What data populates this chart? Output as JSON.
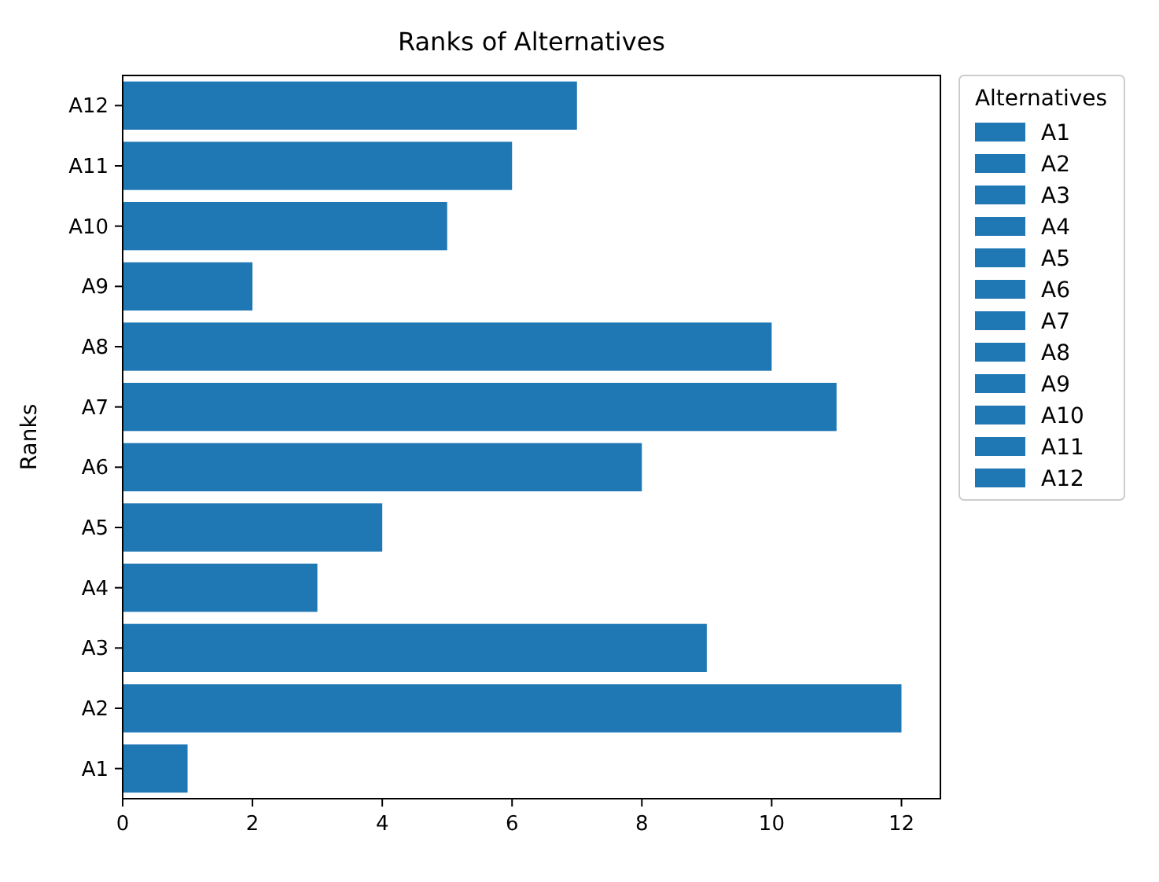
{
  "chart_data": {
    "type": "bar",
    "orientation": "horizontal",
    "title": "Ranks of Alternatives",
    "ylabel": "Ranks",
    "legend_title": "Alternatives",
    "legend": "right",
    "categories": [
      "A12",
      "A11",
      "A10",
      "A9",
      "A8",
      "A7",
      "A6",
      "A5",
      "A4",
      "A3",
      "A2",
      "A1"
    ],
    "xlim": [
      0,
      12.6
    ],
    "xticks": [
      0,
      2,
      4,
      6,
      8,
      10,
      12
    ],
    "series": [
      {
        "name": "A1",
        "color": "#1f77b4",
        "values": [
          null,
          null,
          null,
          null,
          null,
          null,
          null,
          null,
          null,
          null,
          null,
          1
        ]
      },
      {
        "name": "A2",
        "color": "#1f77b4",
        "values": [
          null,
          null,
          null,
          null,
          null,
          null,
          null,
          null,
          null,
          null,
          12,
          null
        ]
      },
      {
        "name": "A3",
        "color": "#1f77b4",
        "values": [
          null,
          null,
          null,
          null,
          null,
          null,
          null,
          null,
          null,
          9,
          null,
          null
        ]
      },
      {
        "name": "A4",
        "color": "#1f77b4",
        "values": [
          null,
          null,
          null,
          null,
          null,
          null,
          null,
          null,
          3,
          null,
          null,
          null
        ]
      },
      {
        "name": "A5",
        "color": "#1f77b4",
        "values": [
          null,
          null,
          null,
          null,
          null,
          null,
          null,
          4,
          null,
          null,
          null,
          null
        ]
      },
      {
        "name": "A6",
        "color": "#1f77b4",
        "values": [
          null,
          null,
          null,
          null,
          null,
          null,
          8,
          null,
          null,
          null,
          null,
          null
        ]
      },
      {
        "name": "A7",
        "color": "#1f77b4",
        "values": [
          null,
          null,
          null,
          null,
          null,
          11,
          null,
          null,
          null,
          null,
          null,
          null
        ]
      },
      {
        "name": "A8",
        "color": "#1f77b4",
        "values": [
          null,
          null,
          null,
          null,
          10,
          null,
          null,
          null,
          null,
          null,
          null,
          null
        ]
      },
      {
        "name": "A9",
        "color": "#1f77b4",
        "values": [
          null,
          null,
          null,
          2,
          null,
          null,
          null,
          null,
          null,
          null,
          null,
          null
        ]
      },
      {
        "name": "A10",
        "color": "#1f77b4",
        "values": [
          null,
          null,
          5,
          null,
          null,
          null,
          null,
          null,
          null,
          null,
          null,
          null
        ]
      },
      {
        "name": "A11",
        "color": "#1f77b4",
        "values": [
          null,
          6,
          null,
          null,
          null,
          null,
          null,
          null,
          null,
          null,
          null,
          null
        ]
      },
      {
        "name": "A12",
        "color": "#1f77b4",
        "values": [
          7,
          null,
          null,
          null,
          null,
          null,
          null,
          null,
          null,
          null,
          null,
          null
        ]
      }
    ]
  }
}
